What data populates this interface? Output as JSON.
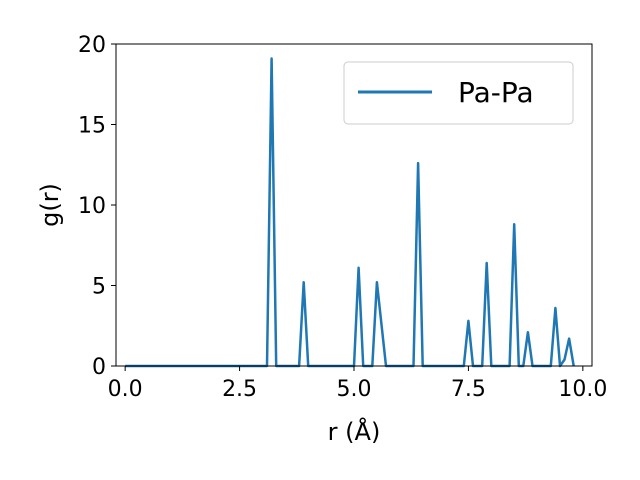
{
  "chart_data": {
    "type": "line",
    "xlabel": "r (Å)",
    "ylabel": "g(r)",
    "xlim": [
      -0.2,
      10.2
    ],
    "ylim": [
      0,
      20
    ],
    "xticks": [
      "0.0",
      "2.5",
      "5.0",
      "7.5",
      "10.0"
    ],
    "yticks": [
      "0",
      "5",
      "10",
      "15",
      "20"
    ],
    "grid": false,
    "legend_position": "top-right",
    "series": [
      {
        "name": "Pa-Pa",
        "color": "#1f77b4",
        "x": [
          0.0,
          3.1,
          3.2,
          3.3,
          3.8,
          3.9,
          4.0,
          5.0,
          5.1,
          5.2,
          5.4,
          5.5,
          5.7,
          6.3,
          6.4,
          6.5,
          7.4,
          7.5,
          7.6,
          7.8,
          7.9,
          8.0,
          8.4,
          8.5,
          8.6,
          8.7,
          8.8,
          8.9,
          9.3,
          9.4,
          9.5,
          9.6,
          9.7,
          9.8
        ],
        "y": [
          0,
          0,
          19.1,
          0,
          0,
          5.2,
          0,
          0,
          6.1,
          0,
          0,
          5.2,
          0,
          0,
          12.6,
          0,
          0,
          2.8,
          0,
          0,
          6.4,
          0,
          0,
          8.8,
          0,
          0,
          2.1,
          0,
          0,
          3.6,
          0,
          0.4,
          1.7,
          0
        ]
      }
    ]
  }
}
